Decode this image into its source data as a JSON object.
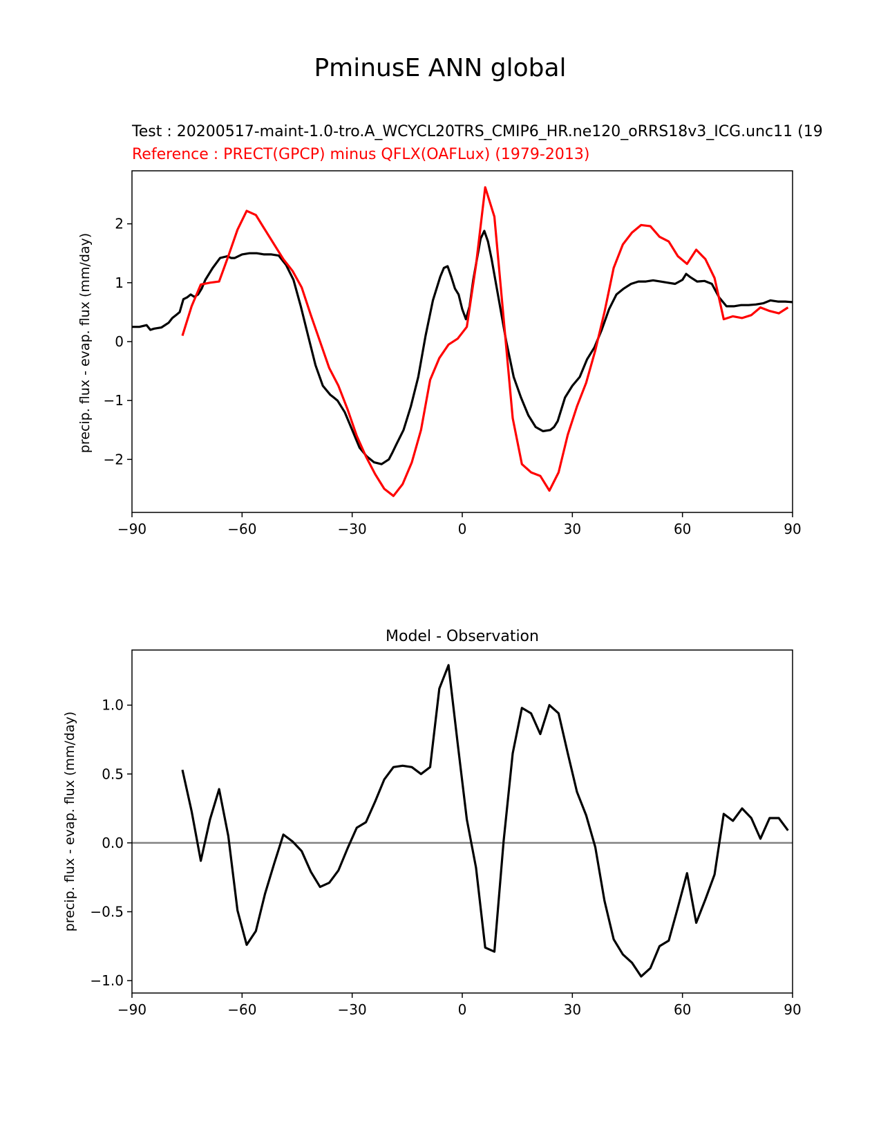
{
  "figure": {
    "suptitle": "PminusE ANN global"
  },
  "chart_data": [
    {
      "type": "line",
      "title_test": "Test : 20200517-maint-1.0-tro.A_WCYCL20TRS_CMIP6_HR.ne120_oRRS18v3_ICG.unc11 (19",
      "title_reference": "Reference : PRECT(GPCP) minus QFLX(OAFLux) (1979-2013)",
      "title_test_color": "#000000",
      "title_reference_color": "#ff0000",
      "xlabel": "",
      "ylabel": "precip. flux - evap. flux (mm/day)",
      "xlim": [
        -90,
        90
      ],
      "ylim": [
        -2.9,
        2.9
      ],
      "xticks": [
        -90,
        -60,
        -30,
        0,
        30,
        60,
        90
      ],
      "xtick_labels": [
        "−90",
        "−60",
        "−30",
        "0",
        "30",
        "60",
        "90"
      ],
      "yticks": [
        -2,
        -1,
        0,
        1,
        2
      ],
      "ytick_labels": [
        "−2",
        "−1",
        "0",
        "1",
        "2"
      ],
      "grid": false,
      "series": [
        {
          "color": "#000000",
          "x": [
            -90,
            -88,
            -86,
            -85,
            -84,
            -82,
            -80,
            -79,
            -78,
            -77,
            -76,
            -75,
            -74,
            -73,
            -72,
            -71,
            -70,
            -68,
            -66,
            -64,
            -63,
            -62,
            -60,
            -58,
            -56,
            -54,
            -52,
            -50,
            -48,
            -46,
            -44,
            -42,
            -40,
            -38,
            -36,
            -35,
            -34,
            -32,
            -30,
            -28,
            -26,
            -24,
            -22,
            -20,
            -19,
            -18,
            -16,
            -14,
            -12,
            -10,
            -8,
            -6,
            -5,
            -4,
            -3,
            -2,
            -1,
            0,
            1,
            2,
            3,
            4,
            5,
            6,
            7,
            8,
            9,
            10,
            12,
            14,
            16,
            18,
            20,
            22,
            24,
            25,
            26,
            28,
            30,
            32,
            34,
            36,
            38,
            40,
            42,
            44,
            46,
            48,
            50,
            52,
            54,
            56,
            58,
            60,
            61,
            62,
            64,
            66,
            68,
            70,
            72,
            74,
            76,
            78,
            80,
            82,
            84,
            86,
            88,
            90
          ],
          "y": [
            0.25,
            0.25,
            0.28,
            0.2,
            0.22,
            0.24,
            0.32,
            0.4,
            0.45,
            0.5,
            0.72,
            0.75,
            0.8,
            0.76,
            0.8,
            0.9,
            1.05,
            1.25,
            1.42,
            1.45,
            1.42,
            1.42,
            1.48,
            1.5,
            1.5,
            1.48,
            1.48,
            1.46,
            1.3,
            1.05,
            0.6,
            0.1,
            -0.4,
            -0.75,
            -0.9,
            -0.95,
            -1.0,
            -1.2,
            -1.5,
            -1.8,
            -1.95,
            -2.05,
            -2.08,
            -2.0,
            -1.88,
            -1.75,
            -1.5,
            -1.1,
            -0.6,
            0.1,
            0.7,
            1.1,
            1.25,
            1.28,
            1.1,
            0.9,
            0.8,
            0.55,
            0.38,
            0.6,
            1.05,
            1.4,
            1.75,
            1.88,
            1.7,
            1.4,
            1.05,
            0.7,
            0.0,
            -0.6,
            -0.95,
            -1.25,
            -1.45,
            -1.52,
            -1.5,
            -1.45,
            -1.35,
            -0.95,
            -0.75,
            -0.6,
            -0.3,
            -0.1,
            0.2,
            0.55,
            0.8,
            0.9,
            0.98,
            1.02,
            1.02,
            1.04,
            1.02,
            1.0,
            0.98,
            1.05,
            1.15,
            1.1,
            1.02,
            1.03,
            0.98,
            0.75,
            0.6,
            0.6,
            0.62,
            0.62,
            0.63,
            0.65,
            0.7,
            0.68,
            0.68,
            0.67
          ]
        },
        {
          "color": "#ff0000",
          "x": [
            -76.25,
            -73.75,
            -71.25,
            -68.75,
            -66.25,
            -63.75,
            -61.25,
            -58.75,
            -56.25,
            -53.75,
            -51.25,
            -48.75,
            -46.25,
            -43.75,
            -41.25,
            -38.75,
            -36.25,
            -33.75,
            -31.25,
            -28.75,
            -26.25,
            -23.75,
            -21.25,
            -18.75,
            -16.25,
            -13.75,
            -11.25,
            -8.75,
            -6.25,
            -3.75,
            -1.25,
            1.25,
            3.75,
            6.25,
            8.75,
            11.25,
            13.75,
            16.25,
            18.75,
            21.25,
            23.75,
            26.25,
            28.75,
            31.25,
            33.75,
            36.25,
            38.75,
            41.25,
            43.75,
            46.25,
            48.75,
            51.25,
            53.75,
            56.25,
            58.75,
            61.25,
            63.75,
            66.25,
            68.75,
            71.25,
            73.75,
            76.25,
            78.75,
            81.25,
            83.75,
            86.25,
            88.75
          ],
          "y": [
            0.1,
            0.6,
            0.97,
            1.0,
            1.02,
            1.45,
            1.9,
            2.22,
            2.15,
            1.9,
            1.65,
            1.4,
            1.2,
            0.92,
            0.45,
            0.0,
            -0.45,
            -0.75,
            -1.15,
            -1.6,
            -1.95,
            -2.25,
            -2.5,
            -2.62,
            -2.42,
            -2.05,
            -1.5,
            -0.65,
            -0.28,
            -0.05,
            0.05,
            0.25,
            1.3,
            2.62,
            2.12,
            0.4,
            -1.3,
            -2.08,
            -2.22,
            -2.28,
            -2.53,
            -2.22,
            -1.58,
            -1.1,
            -0.7,
            -0.15,
            0.5,
            1.25,
            1.65,
            1.85,
            1.98,
            1.96,
            1.78,
            1.7,
            1.45,
            1.32,
            1.56,
            1.4,
            1.08,
            0.38,
            0.43,
            0.4,
            0.45,
            0.58,
            0.52,
            0.48,
            0.58
          ]
        }
      ]
    },
    {
      "type": "line",
      "title": "Model - Observation",
      "xlabel": "",
      "ylabel": "precip. flux - evap. flux (mm/day)",
      "xlim": [
        -90,
        90
      ],
      "ylim": [
        -1.09,
        1.4
      ],
      "xticks": [
        -90,
        -60,
        -30,
        0,
        30,
        60,
        90
      ],
      "xtick_labels": [
        "−90",
        "−60",
        "−30",
        "0",
        "30",
        "60",
        "90"
      ],
      "yticks": [
        -1.0,
        -0.5,
        0.0,
        0.5,
        1.0
      ],
      "ytick_labels": [
        "−1.0",
        "−0.5",
        "0.0",
        "0.5",
        "1.0"
      ],
      "zero_line_color": "#808080",
      "grid": false,
      "series": [
        {
          "color": "#000000",
          "x": [
            -76.25,
            -73.75,
            -71.25,
            -68.75,
            -66.25,
            -63.75,
            -61.25,
            -58.75,
            -56.25,
            -53.75,
            -51.25,
            -48.75,
            -46.25,
            -43.75,
            -41.25,
            -38.75,
            -36.25,
            -33.75,
            -31.25,
            -28.75,
            -26.25,
            -23.75,
            -21.25,
            -18.75,
            -16.25,
            -13.75,
            -11.25,
            -8.75,
            -6.25,
            -3.75,
            -1.25,
            1.25,
            3.75,
            6.25,
            8.75,
            11.25,
            13.75,
            16.25,
            18.75,
            21.25,
            23.75,
            26.25,
            28.75,
            31.25,
            33.75,
            36.25,
            38.75,
            41.25,
            43.75,
            46.25,
            48.75,
            51.25,
            53.75,
            56.25,
            58.75,
            61.25,
            63.75,
            66.25,
            68.75,
            71.25,
            73.75,
            76.25,
            78.75,
            81.25,
            83.75,
            86.25,
            88.75
          ],
          "y": [
            0.53,
            0.23,
            -0.13,
            0.17,
            0.39,
            0.05,
            -0.49,
            -0.74,
            -0.64,
            -0.37,
            -0.15,
            0.06,
            0.01,
            -0.06,
            -0.21,
            -0.32,
            -0.29,
            -0.2,
            -0.04,
            0.11,
            0.15,
            0.3,
            0.46,
            0.55,
            0.56,
            0.55,
            0.5,
            0.55,
            1.12,
            1.29,
            0.72,
            0.17,
            -0.18,
            -0.76,
            -0.79,
            0.01,
            0.65,
            0.98,
            0.94,
            0.79,
            1.0,
            0.94,
            0.65,
            0.37,
            0.2,
            -0.03,
            -0.42,
            -0.7,
            -0.81,
            -0.87,
            -0.97,
            -0.91,
            -0.75,
            -0.71,
            -0.47,
            -0.22,
            -0.58,
            -0.41,
            -0.23,
            0.21,
            0.16,
            0.25,
            0.18,
            0.03,
            0.18,
            0.18,
            0.09
          ]
        }
      ]
    }
  ]
}
